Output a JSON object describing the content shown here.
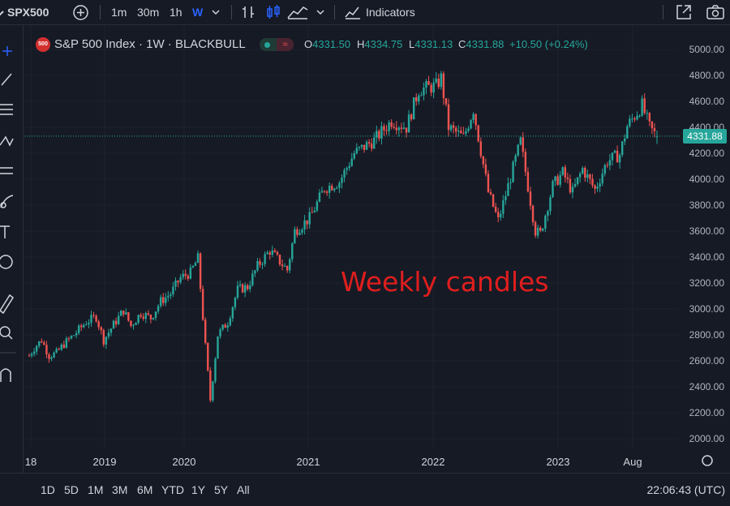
{
  "toolbar": {
    "symbol": "SPX500",
    "intervals": [
      "1m",
      "30m",
      "1h",
      "W"
    ],
    "active_interval": "W",
    "indicators_label": "Indicators"
  },
  "legend": {
    "badge": "500",
    "title": "S&P 500 Index · 1W · BLACKBULL",
    "open_key": "O",
    "open": "4331.50",
    "high_key": "H",
    "high": "4334.75",
    "low_key": "L",
    "low": "4331.13",
    "close_key": "C",
    "close": "4331.88",
    "change": "+10.50 (+0.24%)"
  },
  "annotation": "Weekly candles",
  "price_axis": {
    "ticks": [
      "5000.00",
      "4800.00",
      "4600.00",
      "4400.00",
      "4200.00",
      "4000.00",
      "3800.00",
      "3600.00",
      "3400.00",
      "3200.00",
      "3000.00",
      "2800.00",
      "2600.00",
      "2400.00",
      "2200.00",
      "2000.00"
    ],
    "last_price": "4331.88"
  },
  "time_axis": {
    "labels": [
      "18",
      "2019",
      "2020",
      "2021",
      "2022",
      "2023",
      "Aug"
    ]
  },
  "bottom": {
    "ranges": [
      "1D",
      "5D",
      "1M",
      "3M",
      "6M",
      "YTD",
      "1Y",
      "5Y",
      "All"
    ],
    "clock": "22:06:43 (UTC)"
  },
  "colors": {
    "up": "#26a69a",
    "down": "#ef5350",
    "background": "#161a25",
    "annotation": "#e01e1e"
  },
  "chart_data": {
    "type": "candlestick",
    "title": "S&P 500 Index · 1W · BLACKBULL",
    "ylim": [
      1900,
      5100
    ],
    "x_range": [
      "2018-10-29",
      "2023-09-04"
    ],
    "series": [
      {
        "name": "",
        "points": [
          [
            "2018-10-29",
            2640
          ],
          [
            "2018-11-12",
            2700
          ],
          [
            "2018-12-03",
            2760
          ],
          [
            "2018-12-24",
            2640
          ],
          [
            "2019-01-14",
            2660
          ],
          [
            "2019-02-04",
            2730
          ],
          [
            "2019-03-04",
            2800
          ],
          [
            "2019-04-08",
            2900
          ],
          [
            "2019-05-06",
            2940
          ],
          [
            "2019-05-27",
            2760
          ],
          [
            "2019-06-24",
            2880
          ],
          [
            "2019-07-22",
            2990
          ],
          [
            "2019-08-12",
            2870
          ],
          [
            "2019-09-09",
            2970
          ],
          [
            "2019-10-07",
            2930
          ],
          [
            "2019-11-04",
            3060
          ],
          [
            "2019-12-02",
            3120
          ],
          [
            "2019-12-30",
            3240
          ],
          [
            "2020-01-27",
            3280
          ],
          [
            "2020-02-17",
            3390
          ],
          [
            "2020-03-09",
            2710
          ],
          [
            "2020-03-23",
            2300
          ],
          [
            "2020-04-13",
            2800
          ],
          [
            "2020-05-11",
            2900
          ],
          [
            "2020-06-08",
            3150
          ],
          [
            "2020-07-06",
            3170
          ],
          [
            "2020-08-03",
            3330
          ],
          [
            "2020-09-07",
            3450
          ],
          [
            "2020-10-26",
            3300
          ],
          [
            "2020-11-16",
            3600
          ],
          [
            "2020-12-28",
            3700
          ],
          [
            "2021-02-08",
            3930
          ],
          [
            "2021-03-22",
            3980
          ],
          [
            "2021-05-03",
            4200
          ],
          [
            "2021-06-28",
            4300
          ],
          [
            "2021-08-16",
            4450
          ],
          [
            "2021-09-27",
            4400
          ],
          [
            "2021-11-01",
            4690
          ],
          [
            "2021-12-20",
            4720
          ],
          [
            "2022-01-03",
            4780
          ],
          [
            "2022-01-24",
            4400
          ],
          [
            "2022-03-07",
            4320
          ],
          [
            "2022-04-04",
            4540
          ],
          [
            "2022-05-16",
            3900
          ],
          [
            "2022-06-13",
            3680
          ],
          [
            "2022-07-04",
            3880
          ],
          [
            "2022-08-15",
            4290
          ],
          [
            "2022-09-26",
            3600
          ],
          [
            "2022-10-10",
            3580
          ],
          [
            "2022-11-14",
            3950
          ],
          [
            "2022-12-12",
            4050
          ],
          [
            "2023-01-09",
            3900
          ],
          [
            "2023-02-06",
            4080
          ],
          [
            "2023-03-13",
            3920
          ],
          [
            "2023-04-17",
            4140
          ],
          [
            "2023-05-22",
            4190
          ],
          [
            "2023-06-12",
            4410
          ],
          [
            "2023-07-24",
            4570
          ],
          [
            "2023-08-14",
            4400
          ],
          [
            "2023-08-28",
            4350
          ],
          [
            "2023-09-04",
            4332
          ]
        ]
      }
    ],
    "last": {
      "open": 4331.5,
      "high": 4334.75,
      "low": 4331.13,
      "close": 4331.88
    }
  }
}
